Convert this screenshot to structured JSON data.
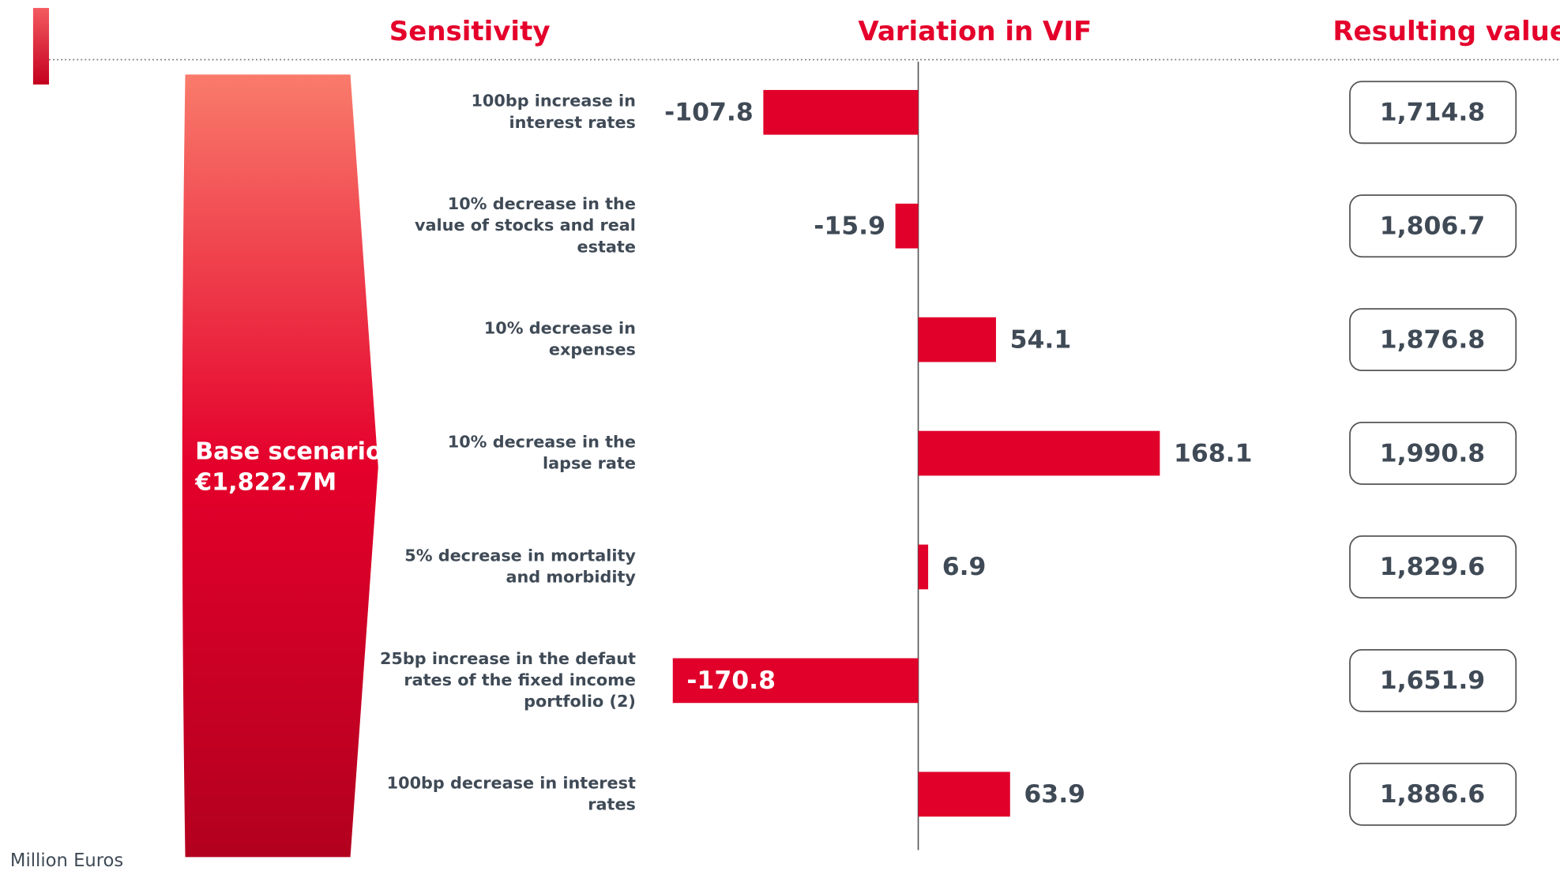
{
  "chart_data": {
    "type": "bar",
    "orientation": "horizontal",
    "headers": [
      "Sensitivity",
      "Variation in VIF",
      "Resulting value"
    ],
    "base_scenario": [
      "Base scenario",
      "€1,822.7M"
    ],
    "unit_note": "Million Euros",
    "categories": [
      [
        "100bp increase in",
        "interest rates"
      ],
      [
        "10% decrease in the",
        "value of stocks and real",
        "estate"
      ],
      [
        "10% decrease in",
        "expenses"
      ],
      [
        "10% decrease in the",
        "lapse rate"
      ],
      [
        "5% decrease in mortality",
        "and morbidity"
      ],
      [
        "25bp increase in the defaut",
        "rates of the fixed income",
        "portfolio (2)"
      ],
      [
        "100bp decrease in interest",
        "rates"
      ]
    ],
    "values": [
      -107.8,
      -15.9,
      54.1,
      168.1,
      6.9,
      -170.8,
      63.9
    ],
    "resulting_values": [
      "1,714.8",
      "1,806.7",
      "1,876.8",
      "1,990.8",
      "1,829.6",
      "1,651.9",
      "1,886.6"
    ],
    "color": "#e0002a",
    "xlim": [
      -200,
      200
    ]
  }
}
